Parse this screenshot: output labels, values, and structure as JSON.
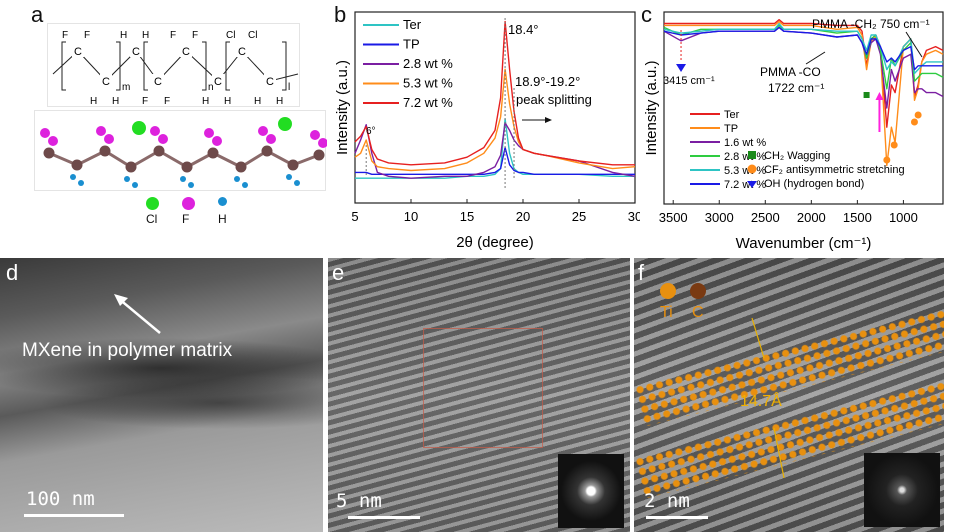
{
  "panels": {
    "a": {
      "label": "a",
      "legend": [
        {
          "element": "Cl",
          "color": "#22dd22"
        },
        {
          "element": "F",
          "color": "#dd22dd"
        },
        {
          "element": "H",
          "color": "#1a8fd0"
        }
      ],
      "formula": {
        "atoms_top": [
          "F",
          "F",
          "H",
          "H",
          "F",
          "H",
          "Cl",
          "F"
        ],
        "atoms_bottom": [
          "H",
          "H",
          "F",
          "F",
          "H",
          "H",
          "H",
          "H"
        ],
        "subscripts": [
          "m",
          "n",
          "l"
        ],
        "carbon": "C"
      }
    },
    "b": {
      "label": "b"
    },
    "c": {
      "label": "c"
    },
    "d": {
      "label": "d",
      "annotation": "MXene in polymer matrix",
      "scale": "100  nm"
    },
    "e": {
      "label": "e",
      "scale": "5  nm"
    },
    "f": {
      "label": "f",
      "scale": "2  nm",
      "legend": [
        "Ti",
        "C"
      ],
      "spacing": "14.7Å"
    }
  },
  "chart_data": [
    {
      "type": "line",
      "title": "",
      "xlabel": "2θ (degree)",
      "ylabel": "Intensity (a.u.)",
      "xlim": [
        5,
        30
      ],
      "ylim": [
        0,
        100
      ],
      "xticks": [
        5,
        10,
        15,
        20,
        25,
        30
      ],
      "annotations": [
        "18.4°",
        "18.9°-19.2°",
        "peak splitting",
        "6°"
      ],
      "legend_position": "top-left",
      "x": [
        5,
        5.5,
        6,
        6.5,
        7,
        8,
        10,
        13,
        15,
        16.5,
        17.5,
        18,
        18.4,
        18.8,
        19.2,
        19.6,
        20,
        21,
        22,
        25,
        28,
        30
      ],
      "series": [
        {
          "name": "Ter",
          "color": "#2ec4c4",
          "values": [
            13,
            13,
            13,
            13,
            13,
            13,
            13,
            13,
            14,
            14,
            15,
            18,
            44,
            26,
            18,
            16,
            15,
            15,
            15,
            15,
            14,
            14
          ]
        },
        {
          "name": "TP",
          "color": "#1a1ae6",
          "values": [
            16,
            16,
            16,
            15,
            15,
            15,
            15,
            15,
            15,
            15,
            16,
            18,
            29,
            20,
            17,
            16,
            16,
            15,
            15,
            15,
            15,
            15
          ]
        },
        {
          "name": "2.8 wt %",
          "color": "#7b1fa2",
          "values": [
            26,
            33,
            41,
            26,
            16,
            14,
            13,
            14,
            14,
            16,
            19,
            25,
            42,
            38,
            33,
            30,
            28,
            26,
            25,
            22,
            16,
            14
          ]
        },
        {
          "name": "5.3 wt %",
          "color": "#ff8c1a",
          "values": [
            24,
            26,
            33,
            22,
            19,
            18,
            17,
            18,
            21,
            26,
            34,
            45,
            70,
            52,
            40,
            32,
            28,
            26,
            25,
            21,
            18,
            19
          ]
        },
        {
          "name": "7.2 wt %",
          "color": "#e62020",
          "values": [
            32,
            35,
            40,
            28,
            23,
            21,
            20,
            21,
            24,
            29,
            38,
            55,
            95,
            70,
            48,
            34,
            28,
            26,
            25,
            22,
            20,
            20
          ]
        }
      ]
    },
    {
      "type": "line",
      "title": "",
      "xlabel": "Wavenumber (cm⁻¹)",
      "ylabel": "Intensity (a.u.)",
      "xlim": [
        3600,
        570
      ],
      "ylim": [
        0,
        100
      ],
      "xticks": [
        3500,
        3000,
        2500,
        2000,
        1500,
        1000
      ],
      "annotations": [
        "3415 cm⁻¹",
        "PMMA -CO",
        "1722 cm⁻¹",
        "PMMA -CH₂ 750 cm⁻¹"
      ],
      "legend_position": "bottom-left",
      "marker_legend": [
        "CH₂ Wagging",
        "CF₂ antisymmetric stretching",
        "OH (hydrogen bond)"
      ],
      "x": [
        3600,
        3415,
        3200,
        3000,
        2400,
        2350,
        2300,
        2000,
        1722,
        1500,
        1450,
        1400,
        1350,
        1300,
        1250,
        1180,
        1130,
        1090,
        1000,
        920,
        880,
        840,
        800,
        750,
        650,
        570
      ],
      "series": [
        {
          "name": "Ter",
          "color": "#e62020",
          "values": [
            94,
            94,
            94,
            94,
            94,
            96,
            94,
            94,
            93,
            93,
            90,
            72,
            86,
            88,
            82,
            40,
            62,
            58,
            82,
            86,
            56,
            62,
            74,
            80,
            82,
            80
          ]
        },
        {
          "name": "TP",
          "color": "#ff8c1a",
          "values": [
            93,
            93,
            93,
            93,
            93,
            95,
            93,
            93,
            91,
            92,
            88,
            70,
            85,
            87,
            80,
            20,
            40,
            32,
            82,
            86,
            54,
            60,
            74,
            78,
            80,
            78
          ]
        },
        {
          "name": "1.6 wt %",
          "color": "#7b1fa2",
          "values": [
            90,
            85,
            89,
            90,
            90,
            92,
            90,
            89,
            87,
            88,
            84,
            76,
            84,
            86,
            78,
            50,
            70,
            64,
            76,
            78,
            58,
            60,
            60,
            58,
            58,
            56
          ]
        },
        {
          "name": "2.8 wt %",
          "color": "#2ecc40",
          "values": [
            92,
            88,
            91,
            91,
            91,
            93,
            91,
            91,
            89,
            90,
            86,
            76,
            86,
            88,
            80,
            60,
            76,
            72,
            80,
            84,
            64,
            66,
            68,
            68,
            68,
            66
          ]
        },
        {
          "name": "5.3 wt %",
          "color": "#2ec4c4",
          "values": [
            91,
            89,
            90,
            91,
            91,
            94,
            91,
            91,
            90,
            90,
            86,
            80,
            88,
            88,
            82,
            70,
            74,
            72,
            82,
            86,
            68,
            70,
            72,
            74,
            74,
            74
          ]
        },
        {
          "name": "7.2 wt %",
          "color": "#1a1ae6",
          "values": [
            90,
            88,
            89,
            90,
            90,
            92,
            90,
            89,
            87,
            88,
            84,
            78,
            86,
            86,
            82,
            74,
            76,
            74,
            80,
            82,
            70,
            72,
            72,
            72,
            72,
            72
          ]
        }
      ]
    }
  ]
}
